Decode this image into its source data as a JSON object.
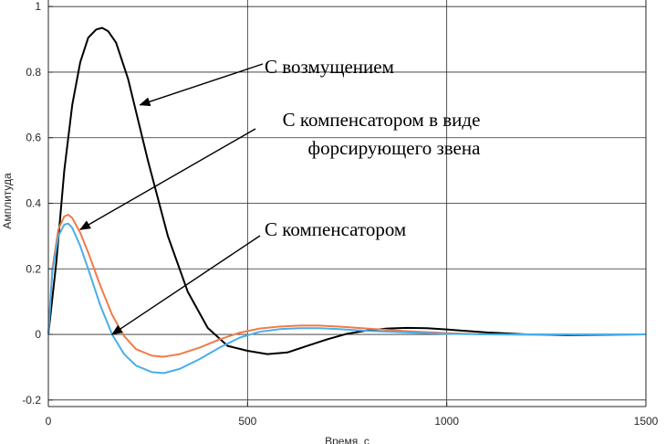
{
  "chart_data": {
    "type": "line",
    "xlabel": "Время, с",
    "ylabel": "Амплитуда",
    "xlim": [
      0,
      1500
    ],
    "ylim": [
      -0.22,
      1.02
    ],
    "xticks": [
      0,
      500,
      1000,
      1500
    ],
    "yticks": [
      -0.2,
      0,
      0.2,
      0.4,
      0.6,
      0.8,
      1
    ],
    "grid": true,
    "series": [
      {
        "name": "С возмущением",
        "color": "#000000",
        "points": [
          [
            0,
            0
          ],
          [
            20,
            0.22
          ],
          [
            40,
            0.5
          ],
          [
            60,
            0.7
          ],
          [
            80,
            0.83
          ],
          [
            100,
            0.905
          ],
          [
            120,
            0.93
          ],
          [
            135,
            0.935
          ],
          [
            150,
            0.925
          ],
          [
            170,
            0.89
          ],
          [
            200,
            0.78
          ],
          [
            250,
            0.53
          ],
          [
            300,
            0.3
          ],
          [
            350,
            0.13
          ],
          [
            400,
            0.02
          ],
          [
            450,
            -0.035
          ],
          [
            500,
            -0.05
          ],
          [
            550,
            -0.06
          ],
          [
            600,
            -0.055
          ],
          [
            650,
            -0.035
          ],
          [
            700,
            -0.015
          ],
          [
            750,
            0.002
          ],
          [
            800,
            0.012
          ],
          [
            850,
            0.018
          ],
          [
            900,
            0.02
          ],
          [
            950,
            0.019
          ],
          [
            1000,
            0.015
          ],
          [
            1100,
            0.006
          ],
          [
            1200,
            0.0
          ],
          [
            1300,
            -0.002
          ],
          [
            1400,
            -0.001
          ],
          [
            1500,
            0.0
          ]
        ]
      },
      {
        "name": "С компенсатором в виде форсирующего звена",
        "color": "#f07b48",
        "points": [
          [
            0,
            0
          ],
          [
            10,
            0.2
          ],
          [
            25,
            0.32
          ],
          [
            40,
            0.36
          ],
          [
            50,
            0.365
          ],
          [
            60,
            0.355
          ],
          [
            80,
            0.31
          ],
          [
            100,
            0.25
          ],
          [
            130,
            0.15
          ],
          [
            160,
            0.06
          ],
          [
            190,
            -0.005
          ],
          [
            220,
            -0.045
          ],
          [
            260,
            -0.065
          ],
          [
            290,
            -0.068
          ],
          [
            330,
            -0.06
          ],
          [
            380,
            -0.04
          ],
          [
            430,
            -0.015
          ],
          [
            480,
            0.005
          ],
          [
            530,
            0.018
          ],
          [
            580,
            0.024
          ],
          [
            630,
            0.027
          ],
          [
            680,
            0.027
          ],
          [
            730,
            0.024
          ],
          [
            800,
            0.018
          ],
          [
            900,
            0.01
          ],
          [
            1000,
            0.004
          ],
          [
            1100,
            0.0
          ],
          [
            1200,
            -0.001
          ],
          [
            1300,
            0.0
          ],
          [
            1500,
            0.0
          ]
        ]
      },
      {
        "name": "С компенсатором",
        "color": "#4aaee8",
        "points": [
          [
            0,
            0
          ],
          [
            10,
            0.19
          ],
          [
            25,
            0.3
          ],
          [
            40,
            0.335
          ],
          [
            50,
            0.338
          ],
          [
            60,
            0.325
          ],
          [
            80,
            0.27
          ],
          [
            100,
            0.2
          ],
          [
            130,
            0.09
          ],
          [
            160,
            0.0
          ],
          [
            190,
            -0.06
          ],
          [
            220,
            -0.095
          ],
          [
            260,
            -0.115
          ],
          [
            290,
            -0.118
          ],
          [
            330,
            -0.105
          ],
          [
            380,
            -0.075
          ],
          [
            430,
            -0.04
          ],
          [
            480,
            -0.01
          ],
          [
            530,
            0.008
          ],
          [
            580,
            0.016
          ],
          [
            630,
            0.019
          ],
          [
            680,
            0.019
          ],
          [
            730,
            0.016
          ],
          [
            800,
            0.011
          ],
          [
            900,
            0.006
          ],
          [
            1000,
            0.002
          ],
          [
            1100,
            0.0
          ],
          [
            1300,
            0.0
          ],
          [
            1500,
            0.0
          ]
        ]
      }
    ],
    "annotations": [
      {
        "name": "annotation-disturbance",
        "lines": [
          "С возмущением"
        ],
        "target": [
          230,
          0.7
        ]
      },
      {
        "name": "annotation-forcing-compensator",
        "lines": [
          "С компенсатором в виде",
          "форсирующего звена"
        ],
        "target": [
          80,
          0.32
        ]
      },
      {
        "name": "annotation-compensator",
        "lines": [
          "С компенсатором"
        ],
        "target": [
          160,
          0.0
        ]
      }
    ]
  }
}
